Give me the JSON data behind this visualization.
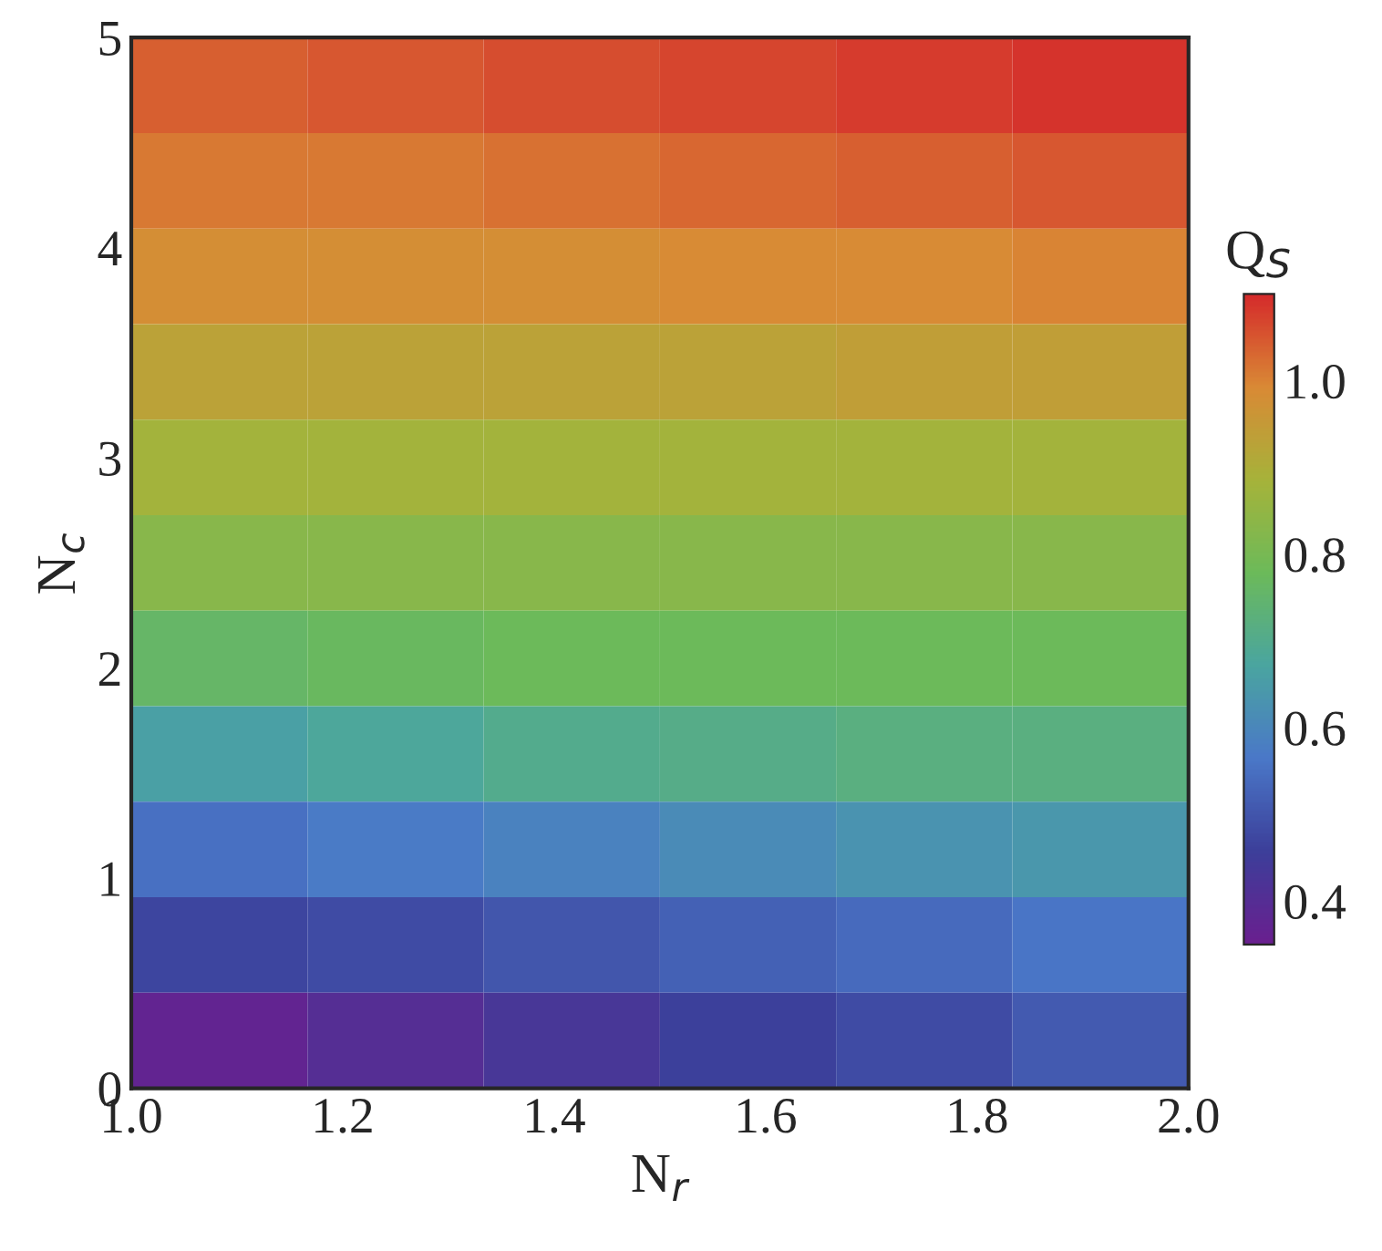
{
  "chart_data": {
    "type": "heatmap",
    "xlabel": "N$_{r}$",
    "ylabel": "N$_{c}$",
    "clabel": "Q$_{S}$",
    "xlim": [
      1.0,
      2.0
    ],
    "ylim": [
      0,
      5
    ],
    "xticks": [
      {
        "value": 1.0,
        "label": "1.0"
      },
      {
        "value": 1.2,
        "label": "1.2"
      },
      {
        "value": 1.4,
        "label": "1.4"
      },
      {
        "value": 1.6,
        "label": "1.6"
      },
      {
        "value": 1.8,
        "label": "1.8"
      },
      {
        "value": 2.0,
        "label": "2.0"
      }
    ],
    "yticks": [
      0,
      1,
      2,
      3,
      4,
      5
    ],
    "clim": [
      0.35,
      1.1
    ],
    "cticks": [
      0.4,
      0.6,
      0.8,
      {
        "value": 1.0,
        "label": "1.0"
      }
    ],
    "colors": [
      "#6a1f8f",
      "#3c3f9a",
      "#4a78c8",
      "#4aa5a0",
      "#6cba5a",
      "#a6b33a",
      "#d98a35",
      "#d52b2b"
    ],
    "cells": [
      [
        1.04,
        1.05,
        1.06,
        1.07,
        1.08,
        1.09
      ],
      [
        1.01,
        1.01,
        1.02,
        1.03,
        1.04,
        1.05
      ],
      [
        0.98,
        0.98,
        0.98,
        0.99,
        0.99,
        1.0
      ],
      [
        0.93,
        0.93,
        0.93,
        0.93,
        0.94,
        0.94
      ],
      [
        0.88,
        0.88,
        0.88,
        0.88,
        0.88,
        0.88
      ],
      [
        0.83,
        0.83,
        0.83,
        0.83,
        0.83,
        0.83
      ],
      [
        0.76,
        0.77,
        0.78,
        0.78,
        0.78,
        0.78
      ],
      [
        0.66,
        0.68,
        0.7,
        0.71,
        0.72,
        0.72
      ],
      [
        0.55,
        0.57,
        0.59,
        0.61,
        0.63,
        0.64
      ],
      [
        0.47,
        0.48,
        0.5,
        0.52,
        0.54,
        0.56
      ],
      [
        0.37,
        0.4,
        0.43,
        0.46,
        0.48,
        0.51
      ]
    ]
  }
}
